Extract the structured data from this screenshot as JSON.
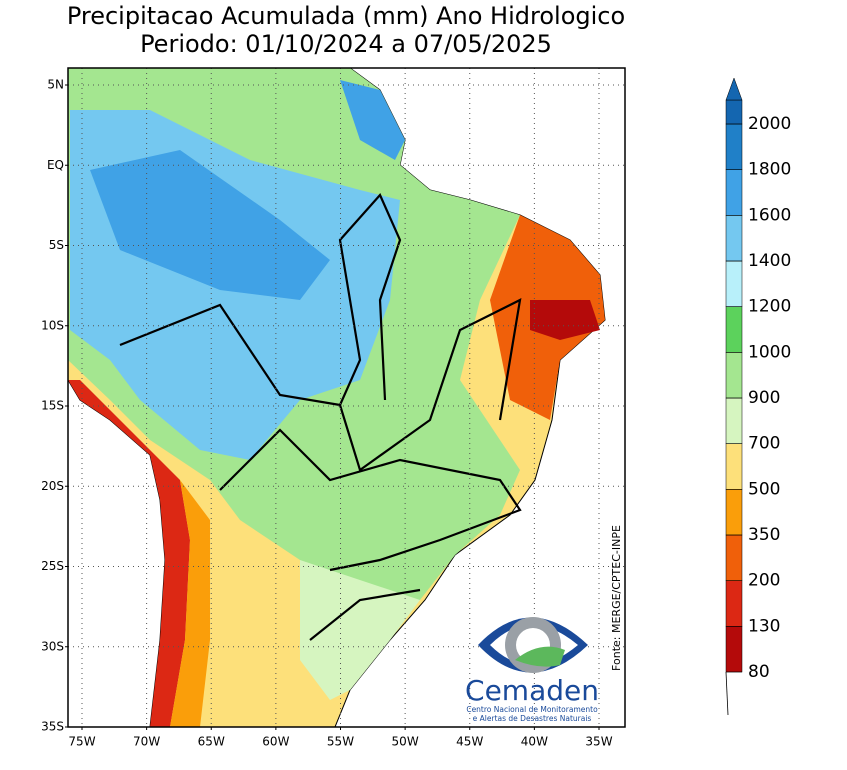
{
  "title": [
    "Precipitacao Acumulada (mm) Ano Hidrologico",
    "Periodo: 01/10/2024 a 07/05/2025"
  ],
  "lat_labels": [
    "5N",
    "EQ",
    "5S",
    "10S",
    "15S",
    "20S",
    "25S",
    "30S",
    "35S"
  ],
  "lon_labels": [
    "75W",
    "70W",
    "65W",
    "60W",
    "55W",
    "50W",
    "45W",
    "40W",
    "35W"
  ],
  "legend": {
    "levels": [
      80,
      130,
      200,
      350,
      500,
      700,
      900,
      1000,
      1200,
      1400,
      1600,
      1800,
      2000
    ],
    "colors": [
      "#b40a0a",
      "#dc2814",
      "#f0600a",
      "#fa9e0a",
      "#fde07a",
      "#d6f5c0",
      "#a4e690",
      "#5cd25c",
      "#b8f0fa",
      "#74c8f0",
      "#40a2e6",
      "#2080c8",
      "#1466b0"
    ]
  },
  "source": "Fonte: MERGE/CPTEC-INPE",
  "logo": {
    "name": "Cemaden",
    "subtitle": [
      "Centro Nacional de Monitoramento",
      "e Alertas de Desastres Naturais"
    ]
  }
}
